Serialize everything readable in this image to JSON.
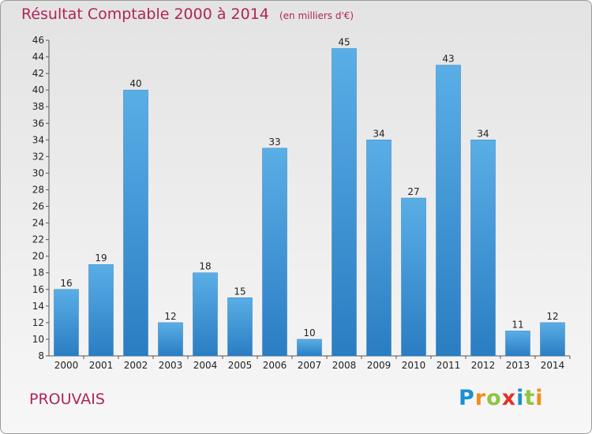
{
  "title": "Résultat Comptable 2000 à 2014",
  "unit_label": "(en milliers d'€)",
  "commune": "PROUVAIS",
  "logo": {
    "letters": [
      "P",
      "r",
      "o",
      "x",
      "i",
      "t",
      "i"
    ],
    "colors": [
      "#1c8fd0",
      "#f28c1b",
      "#8cc63f",
      "#e5302a",
      "#1c8fd0",
      "#8cc63f",
      "#f28c1b"
    ]
  },
  "colors": {
    "title": "#b1245a",
    "bar_light": "#5aaee6",
    "bar_dark": "#2a7dc2"
  },
  "chart_data": {
    "type": "bar",
    "title": "Résultat Comptable 2000 à 2014",
    "subtitle": "(en milliers d'€)",
    "xlabel": "",
    "ylabel": "",
    "categories": [
      "2000",
      "2001",
      "2002",
      "2003",
      "2004",
      "2005",
      "2006",
      "2007",
      "2008",
      "2009",
      "2010",
      "2011",
      "2012",
      "2013",
      "2014"
    ],
    "values": [
      16,
      19,
      40,
      12,
      18,
      15,
      33,
      10,
      45,
      34,
      27,
      43,
      34,
      11,
      12
    ],
    "ylim": [
      8,
      46
    ],
    "yticks": [
      8,
      10,
      12,
      14,
      16,
      18,
      20,
      22,
      24,
      26,
      28,
      30,
      32,
      34,
      36,
      38,
      40,
      42,
      44,
      46
    ],
    "grid": false,
    "legend": "none"
  }
}
